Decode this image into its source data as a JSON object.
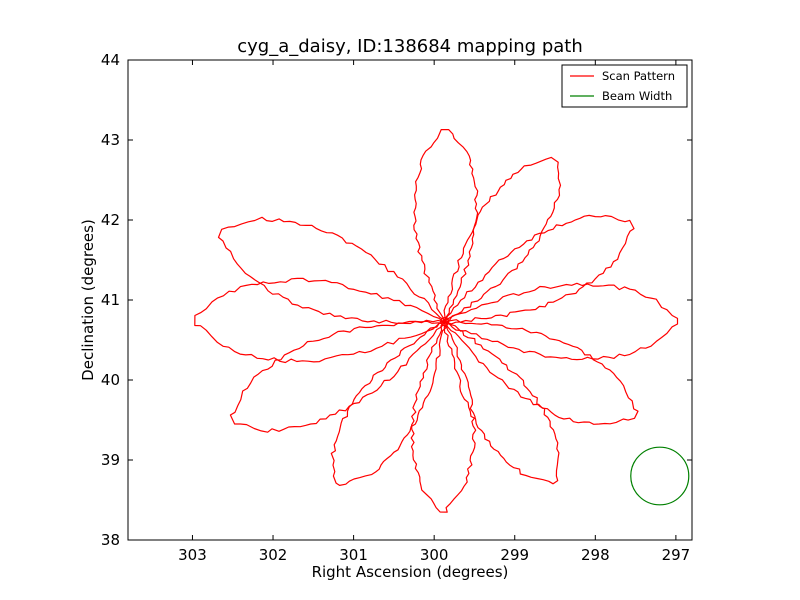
{
  "chart_data": {
    "type": "line",
    "title": "cyg_a_daisy, ID:138684 mapping path",
    "xlabel": "Right Ascension (degrees)",
    "ylabel": "Declination (degrees)",
    "x_inverted": true,
    "xlim": [
      303.8,
      296.8
    ],
    "ylim": [
      38,
      44
    ],
    "x_ticks": [
      303,
      302,
      301,
      300,
      299,
      298,
      297
    ],
    "y_ticks": [
      38,
      39,
      40,
      41,
      42,
      43,
      44
    ],
    "grid": false,
    "legend_position": "top-right",
    "center": {
      "ra": 299.87,
      "dec": 40.73
    },
    "series": [
      {
        "name": "Scan Pattern",
        "color": "#ff0000",
        "pattern": "daisy",
        "petal_count": 11,
        "petal_tips": [
          {
            "ra": 299.85,
            "dec": 43.13
          },
          {
            "ra": 298.5,
            "dec": 42.75
          },
          {
            "ra": 297.55,
            "dec": 41.95
          },
          {
            "ra": 296.98,
            "dec": 40.73
          },
          {
            "ra": 297.5,
            "dec": 39.55
          },
          {
            "ra": 298.5,
            "dec": 38.72
          },
          {
            "ra": 299.9,
            "dec": 38.35
          },
          {
            "ra": 301.2,
            "dec": 38.7
          },
          {
            "ra": 302.5,
            "dec": 39.5
          },
          {
            "ra": 302.97,
            "dec": 40.75
          },
          {
            "ra": 302.65,
            "dec": 41.85
          }
        ]
      },
      {
        "name": "Beam Width",
        "color": "#008000",
        "shape": "circle",
        "center": {
          "ra": 297.2,
          "dec": 38.8
        },
        "radius_deg": 0.36
      }
    ]
  }
}
